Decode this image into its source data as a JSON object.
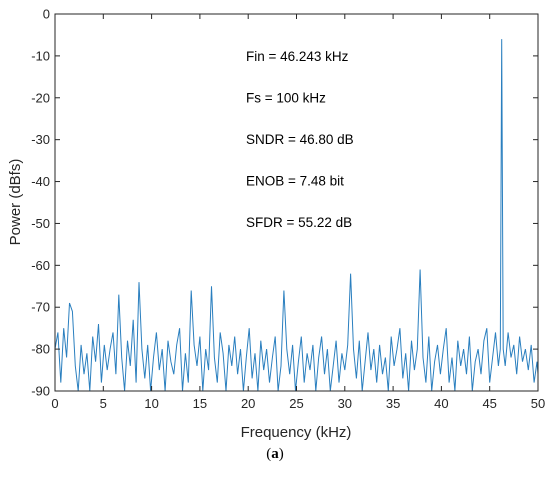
{
  "chart_data": {
    "type": "line",
    "xlabel": "Frequency (kHz)",
    "ylabel": "Power (dBfs)",
    "xlim": [
      0,
      50
    ],
    "ylim": [
      -90,
      0
    ],
    "x_ticks": [
      0,
      5,
      10,
      15,
      20,
      25,
      30,
      35,
      40,
      45,
      50
    ],
    "y_ticks": [
      0,
      -10,
      -20,
      -30,
      -40,
      -50,
      -60,
      -70,
      -80,
      -90
    ],
    "grid": false,
    "line_color": "#2a7fbf",
    "annotations": [
      "Fin = 46.243 kHz",
      "Fs = 100 kHz",
      "SNDR = 46.80 dB",
      "ENOB = 7.48 bit",
      "SFDR = 55.22 dB"
    ],
    "x": [
      0.0,
      0.3,
      0.6,
      0.9,
      1.2,
      1.5,
      1.8,
      2.1,
      2.4,
      2.7,
      3.0,
      3.3,
      3.6,
      3.9,
      4.2,
      4.5,
      4.8,
      5.1,
      5.4,
      5.7,
      6.0,
      6.3,
      6.6,
      6.9,
      7.2,
      7.5,
      7.8,
      8.1,
      8.4,
      8.7,
      9.0,
      9.3,
      9.6,
      9.9,
      10.2,
      10.5,
      10.8,
      11.1,
      11.4,
      11.7,
      12.0,
      12.3,
      12.6,
      12.9,
      13.2,
      13.5,
      13.8,
      14.1,
      14.4,
      14.7,
      15.0,
      15.3,
      15.6,
      15.9,
      16.2,
      16.5,
      16.8,
      17.1,
      17.4,
      17.7,
      18.0,
      18.3,
      18.6,
      18.9,
      19.2,
      19.5,
      19.8,
      20.1,
      20.4,
      20.7,
      21.0,
      21.3,
      21.6,
      21.9,
      22.2,
      22.5,
      22.8,
      23.1,
      23.4,
      23.7,
      24.0,
      24.3,
      24.6,
      24.9,
      25.2,
      25.5,
      25.8,
      26.1,
      26.4,
      26.7,
      27.0,
      27.3,
      27.6,
      27.9,
      28.2,
      28.5,
      28.8,
      29.1,
      29.4,
      29.7,
      30.0,
      30.3,
      30.6,
      30.9,
      31.2,
      31.5,
      31.8,
      32.1,
      32.4,
      32.7,
      33.0,
      33.3,
      33.6,
      33.9,
      34.2,
      34.5,
      34.8,
      35.1,
      35.4,
      35.7,
      36.0,
      36.3,
      36.6,
      36.9,
      37.2,
      37.5,
      37.8,
      38.1,
      38.4,
      38.7,
      39.0,
      39.3,
      39.6,
      39.9,
      40.2,
      40.5,
      40.8,
      41.1,
      41.4,
      41.7,
      42.0,
      42.3,
      42.6,
      42.9,
      43.2,
      43.5,
      43.8,
      44.1,
      44.4,
      44.7,
      45.0,
      45.3,
      45.6,
      45.9,
      46.1,
      46.24,
      46.4,
      46.6,
      46.9,
      47.2,
      47.5,
      47.8,
      48.1,
      48.4,
      48.7,
      49.0,
      49.3,
      49.6,
      49.9,
      50.0
    ],
    "y": [
      -80,
      -76,
      -88,
      -75,
      -82,
      -69,
      -71,
      -84,
      -90,
      -79,
      -86,
      -81,
      -90,
      -77,
      -83,
      -74,
      -88,
      -79,
      -85,
      -80,
      -76,
      -86,
      -67,
      -82,
      -90,
      -78,
      -84,
      -73,
      -88,
      -64,
      -80,
      -87,
      -79,
      -90,
      -82,
      -76,
      -85,
      -80,
      -90,
      -78,
      -83,
      -86,
      -79,
      -75,
      -90,
      -81,
      -88,
      -66,
      -79,
      -84,
      -77,
      -90,
      -80,
      -85,
      -65,
      -82,
      -88,
      -76,
      -81,
      -90,
      -79,
      -84,
      -77,
      -86,
      -80,
      -90,
      -82,
      -75,
      -87,
      -81,
      -90,
      -78,
      -85,
      -80,
      -88,
      -82,
      -77,
      -90,
      -84,
      -66,
      -80,
      -86,
      -79,
      -90,
      -83,
      -77,
      -88,
      -81,
      -85,
      -79,
      -90,
      -82,
      -77,
      -86,
      -80,
      -90,
      -84,
      -78,
      -88,
      -81,
      -85,
      -79,
      -62,
      -80,
      -87,
      -78,
      -90,
      -83,
      -76,
      -85,
      -80,
      -88,
      -79,
      -86,
      -82,
      -90,
      -77,
      -84,
      -80,
      -75,
      -87,
      -81,
      -90,
      -78,
      -85,
      -80,
      -61,
      -82,
      -88,
      -77,
      -90,
      -83,
      -79,
      -86,
      -80,
      -75,
      -88,
      -82,
      -90,
      -78,
      -84,
      -80,
      -86,
      -77,
      -90,
      -83,
      -80,
      -86,
      -78,
      -75,
      -88,
      -82,
      -76,
      -84,
      -80,
      -6,
      -80,
      -84,
      -76,
      -82,
      -79,
      -86,
      -77,
      -83,
      -80,
      -85,
      -79,
      -88,
      -83,
      -86
    ]
  },
  "caption": {
    "open": "(",
    "label": "a",
    "close": ")"
  }
}
